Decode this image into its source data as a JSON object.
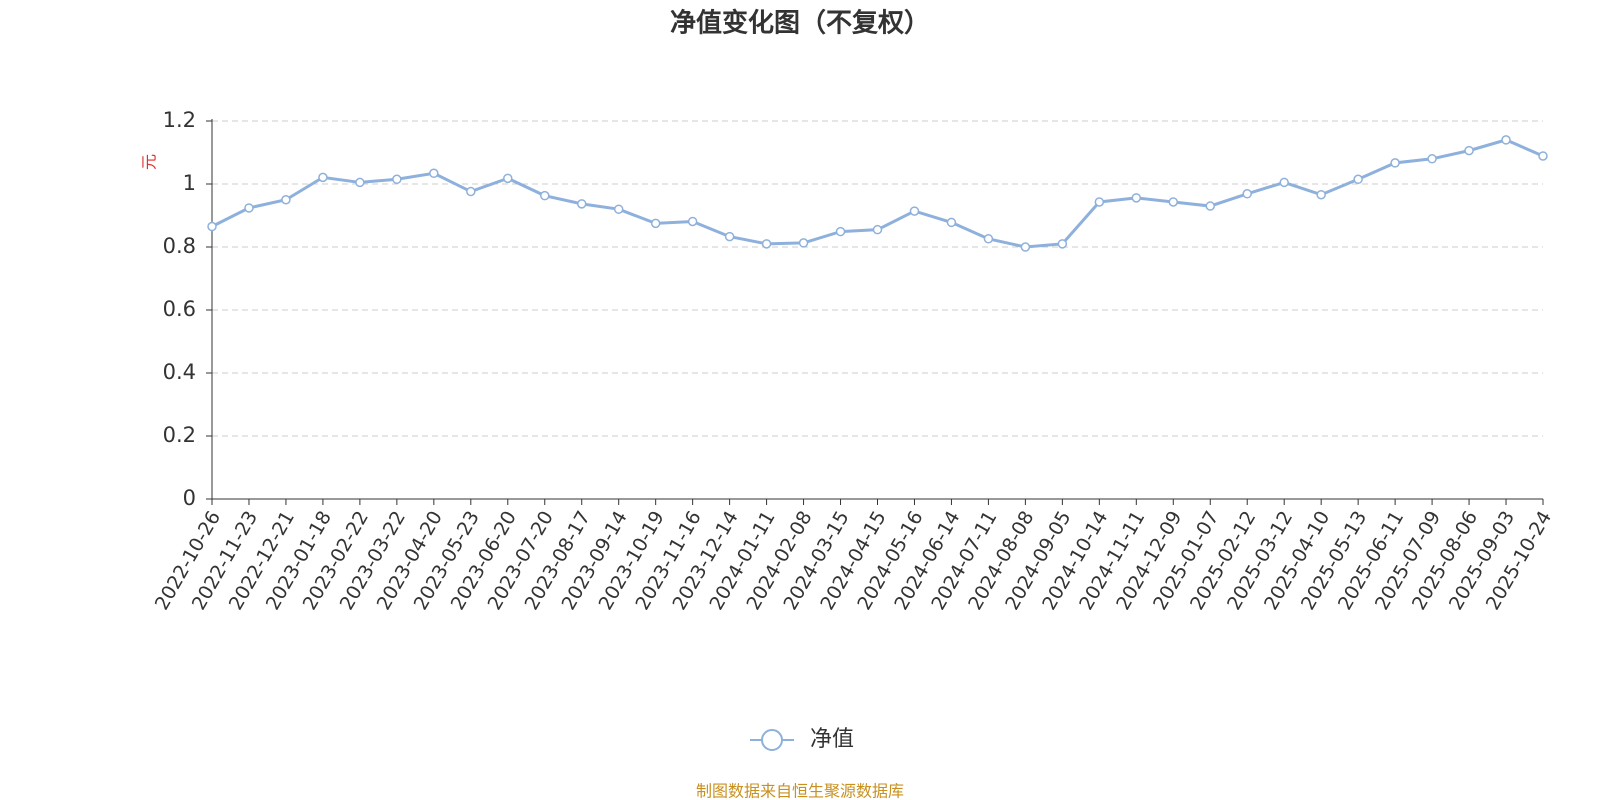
{
  "chart_data": {
    "type": "line",
    "title": "净值变化图（不复权）",
    "y_label": "元",
    "categories": [
      "2022-10-26",
      "2022-11-23",
      "2022-12-21",
      "2023-01-18",
      "2023-02-22",
      "2023-03-22",
      "2023-04-20",
      "2023-05-23",
      "2023-06-20",
      "2023-07-20",
      "2023-08-17",
      "2023-09-14",
      "2023-10-19",
      "2023-11-16",
      "2023-12-14",
      "2024-01-11",
      "2024-02-08",
      "2024-03-15",
      "2024-04-15",
      "2024-05-16",
      "2024-06-14",
      "2024-07-11",
      "2024-08-08",
      "2024-09-05",
      "2024-10-14",
      "2024-11-11",
      "2024-12-09",
      "2025-01-07",
      "2025-02-12",
      "2025-03-12",
      "2025-04-10",
      "2025-05-13",
      "2025-06-11",
      "2025-07-09",
      "2025-08-06",
      "2025-09-03",
      "2025-10-24"
    ],
    "series": [
      {
        "name": "净值",
        "color": "#8eb0dc",
        "values": [
          0.865,
          0.924,
          0.95,
          1.021,
          1.005,
          1.015,
          1.034,
          0.976,
          1.018,
          0.963,
          0.937,
          0.92,
          0.875,
          0.881,
          0.833,
          0.81,
          0.813,
          0.849,
          0.855,
          0.914,
          0.878,
          0.826,
          0.8,
          0.81,
          0.943,
          0.956,
          0.943,
          0.93,
          0.969,
          1.005,
          0.966,
          1.015,
          1.067,
          1.08,
          1.106,
          1.14,
          1.089
        ]
      }
    ],
    "ylim": [
      0,
      1.2
    ],
    "yticks": [
      0,
      0.2,
      0.4,
      0.6,
      0.8,
      1,
      1.2
    ],
    "grid": true,
    "legend": "bottom",
    "source": "制图数据来自恒生聚源数据库"
  }
}
